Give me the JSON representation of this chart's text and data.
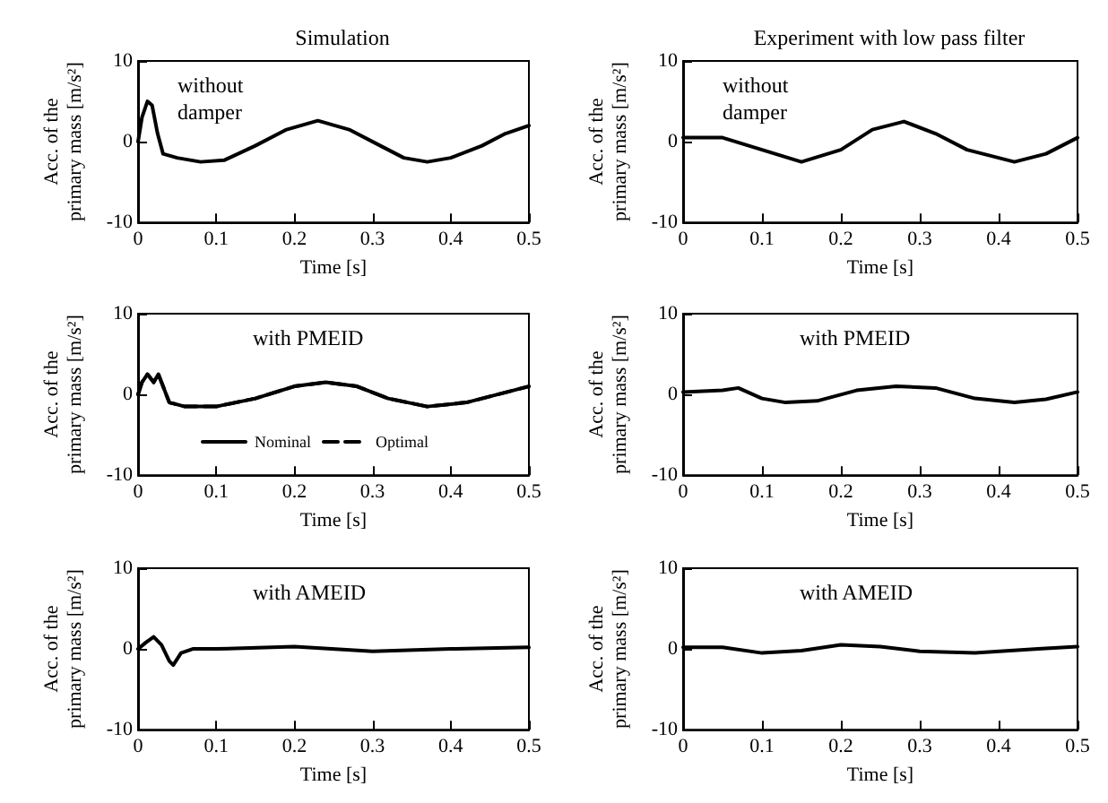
{
  "chart_data": [
    {
      "type": "line",
      "title": "Simulation",
      "xlabel": "Time [s]",
      "ylabel": "Acc. of the primary mass [m/s²]",
      "annotations": [
        "without damper"
      ],
      "xlim": [
        0,
        0.5
      ],
      "xticks": [
        0,
        0.1,
        0.2,
        0.3,
        0.4,
        0.5
      ],
      "ylim": [
        -10,
        10
      ],
      "yticks": [
        -10,
        0,
        10
      ],
      "grid": false,
      "legend": false,
      "marker": "none",
      "series": [
        {
          "color": "#000000",
          "line_style": "solid",
          "x": [
            0,
            0.005,
            0.012,
            0.018,
            0.025,
            0.032,
            0.05,
            0.08,
            0.11,
            0.15,
            0.19,
            0.23,
            0.27,
            0.31,
            0.34,
            0.37,
            0.4,
            0.44,
            0.47,
            0.5
          ],
          "values": [
            0,
            3,
            5,
            4.5,
            1,
            -1.5,
            -2,
            -2.5,
            -2.3,
            -0.5,
            1.5,
            2.6,
            1.5,
            -0.5,
            -2,
            -2.5,
            -2,
            -0.5,
            1,
            2
          ]
        }
      ]
    },
    {
      "type": "line",
      "title": "Experiment with low pass filter",
      "xlabel": "Time [s]",
      "ylabel": "Acc. of the primary mass [m/s²]",
      "annotations": [
        "without damper"
      ],
      "xlim": [
        0,
        0.5
      ],
      "xticks": [
        0,
        0.1,
        0.2,
        0.3,
        0.4,
        0.5
      ],
      "ylim": [
        -10,
        10
      ],
      "yticks": [
        -10,
        0,
        10
      ],
      "grid": false,
      "legend": false,
      "marker": "none",
      "series": [
        {
          "color": "#000000",
          "line_style": "solid",
          "x": [
            0,
            0.05,
            0.1,
            0.15,
            0.2,
            0.24,
            0.28,
            0.32,
            0.36,
            0.42,
            0.46,
            0.5
          ],
          "values": [
            0.5,
            0.5,
            -1,
            -2.5,
            -1,
            1.5,
            2.5,
            1,
            -1,
            -2.5,
            -1.5,
            0.5
          ]
        }
      ]
    },
    {
      "type": "line",
      "xlabel": "Time [s]",
      "ylabel": "Acc. of the primary mass [m/s²]",
      "annotations": [
        "with PMEID"
      ],
      "xlim": [
        0,
        0.5
      ],
      "xticks": [
        0,
        0.1,
        0.2,
        0.3,
        0.4,
        0.5
      ],
      "ylim": [
        -10,
        10
      ],
      "yticks": [
        -10,
        0,
        10
      ],
      "grid": false,
      "legend": "bottom",
      "marker": "none",
      "series": [
        {
          "name": "Nominal",
          "color": "#000000",
          "line_style": "solid",
          "x": [
            0,
            0.005,
            0.012,
            0.02,
            0.026,
            0.032,
            0.04,
            0.06,
            0.1,
            0.15,
            0.2,
            0.24,
            0.28,
            0.32,
            0.37,
            0.42,
            0.46,
            0.5
          ],
          "values": [
            0,
            1.5,
            2.5,
            1.5,
            2.5,
            1,
            -1,
            -1.5,
            -1.5,
            -0.5,
            1,
            1.5,
            1,
            -0.5,
            -1.5,
            -1,
            0,
            1
          ]
        },
        {
          "name": "Optimal",
          "color": "#000000",
          "line_style": "dashed",
          "x": [
            0,
            0.005,
            0.012,
            0.02,
            0.026,
            0.032,
            0.04,
            0.06,
            0.1,
            0.15,
            0.2,
            0.24,
            0.28,
            0.32,
            0.37,
            0.42,
            0.46,
            0.5
          ],
          "values": [
            0,
            1.5,
            2.5,
            1.5,
            2.5,
            1,
            -1,
            -1.5,
            -1.5,
            -0.5,
            1,
            1.5,
            1,
            -0.5,
            -1.5,
            -1,
            0,
            1
          ]
        }
      ]
    },
    {
      "type": "line",
      "xlabel": "Time [s]",
      "ylabel": "Acc. of the primary mass [m/s²]",
      "annotations": [
        "with PMEID"
      ],
      "xlim": [
        0,
        0.5
      ],
      "xticks": [
        0,
        0.1,
        0.2,
        0.3,
        0.4,
        0.5
      ],
      "ylim": [
        -10,
        10
      ],
      "yticks": [
        -10,
        0,
        10
      ],
      "grid": false,
      "legend": false,
      "marker": "none",
      "series": [
        {
          "color": "#000000",
          "line_style": "solid",
          "x": [
            0,
            0.05,
            0.07,
            0.1,
            0.13,
            0.17,
            0.22,
            0.27,
            0.32,
            0.37,
            0.42,
            0.46,
            0.5
          ],
          "values": [
            0.3,
            0.5,
            0.8,
            -0.5,
            -1,
            -0.8,
            0.5,
            1,
            0.8,
            -0.5,
            -1,
            -0.6,
            0.3
          ]
        }
      ]
    },
    {
      "type": "line",
      "xlabel": "Time [s]",
      "ylabel": "Acc. of the primary mass [m/s²]",
      "annotations": [
        "with AMEID"
      ],
      "xlim": [
        0,
        0.5
      ],
      "xticks": [
        0,
        0.1,
        0.2,
        0.3,
        0.4,
        0.5
      ],
      "ylim": [
        -10,
        10
      ],
      "yticks": [
        -10,
        0,
        10
      ],
      "grid": false,
      "legend": false,
      "marker": "none",
      "series": [
        {
          "color": "#000000",
          "line_style": "solid",
          "x": [
            0,
            0.01,
            0.02,
            0.03,
            0.04,
            0.045,
            0.055,
            0.07,
            0.1,
            0.2,
            0.3,
            0.4,
            0.5
          ],
          "values": [
            0,
            0.8,
            1.5,
            0.5,
            -1.5,
            -2,
            -0.5,
            0,
            0,
            0.3,
            -0.3,
            0,
            0.2
          ]
        }
      ]
    },
    {
      "type": "line",
      "xlabel": "Time [s]",
      "ylabel": "Acc. of the primary mass [m/s²]",
      "annotations": [
        "with AMEID"
      ],
      "xlim": [
        0,
        0.5
      ],
      "xticks": [
        0,
        0.1,
        0.2,
        0.3,
        0.4,
        0.5
      ],
      "ylim": [
        -10,
        10
      ],
      "yticks": [
        -10,
        0,
        10
      ],
      "grid": false,
      "legend": false,
      "marker": "none",
      "series": [
        {
          "color": "#000000",
          "line_style": "solid",
          "x": [
            0,
            0.05,
            0.1,
            0.15,
            0.2,
            0.25,
            0.3,
            0.37,
            0.45,
            0.5
          ],
          "values": [
            0.2,
            0.2,
            -0.5,
            -0.2,
            0.5,
            0.3,
            -0.3,
            -0.5,
            0,
            0.3
          ]
        }
      ]
    }
  ]
}
